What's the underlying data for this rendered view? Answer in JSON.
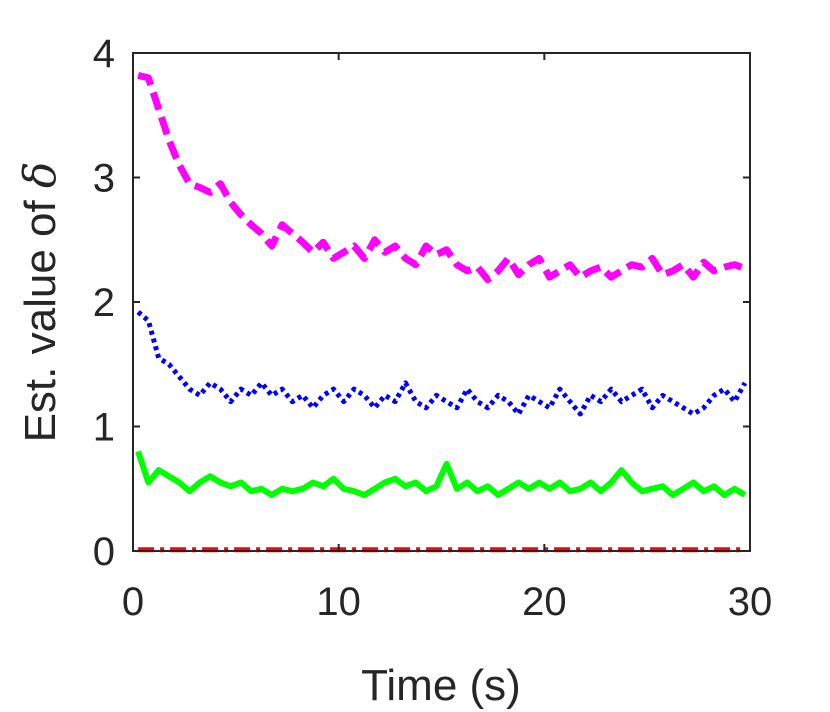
{
  "chart_data": {
    "type": "line",
    "xlabel": "Time (s)",
    "ylabel_prefix": "Est. value of ",
    "ylabel_symbol": "δ",
    "xlim": [
      0,
      30
    ],
    "ylim": [
      0,
      4
    ],
    "x_ticks": [
      0,
      10,
      20,
      30
    ],
    "y_ticks": [
      0,
      1,
      2,
      3,
      4
    ],
    "x_tick_labels": [
      "0",
      "10",
      "20",
      "30"
    ],
    "y_tick_labels": [
      "0",
      "1",
      "2",
      "3",
      "4"
    ],
    "grid": false,
    "x": [
      0.25,
      0.75,
      1.25,
      1.75,
      2.25,
      2.75,
      3.25,
      3.75,
      4.25,
      4.75,
      5.25,
      5.75,
      6.25,
      6.75,
      7.25,
      7.75,
      8.25,
      8.75,
      9.25,
      9.75,
      10.25,
      10.75,
      11.25,
      11.75,
      12.25,
      12.75,
      13.25,
      13.75,
      14.25,
      14.75,
      15.25,
      15.75,
      16.25,
      16.75,
      17.25,
      17.75,
      18.25,
      18.75,
      19.25,
      19.75,
      20.25,
      20.75,
      21.25,
      21.75,
      22.25,
      22.75,
      23.25,
      23.75,
      24.25,
      24.75,
      25.25,
      25.75,
      26.25,
      26.75,
      27.25,
      27.75,
      28.25,
      28.75,
      29.25,
      29.75
    ],
    "series": [
      {
        "name": "magenta-dashed",
        "color": "#ff00ff",
        "style": "dashed",
        "values": [
          3.82,
          3.8,
          3.55,
          3.3,
          3.1,
          2.95,
          2.92,
          2.88,
          2.95,
          2.8,
          2.7,
          2.62,
          2.55,
          2.45,
          2.62,
          2.55,
          2.48,
          2.4,
          2.48,
          2.35,
          2.4,
          2.45,
          2.35,
          2.5,
          2.4,
          2.45,
          2.35,
          2.3,
          2.45,
          2.38,
          2.42,
          2.3,
          2.25,
          2.28,
          2.18,
          2.25,
          2.35,
          2.22,
          2.3,
          2.35,
          2.2,
          2.25,
          2.3,
          2.2,
          2.25,
          2.28,
          2.2,
          2.25,
          2.3,
          2.28,
          2.35,
          2.22,
          2.25,
          2.3,
          2.2,
          2.32,
          2.25,
          2.28,
          2.3,
          2.27
        ]
      },
      {
        "name": "blue-dotted",
        "color": "#0000ff",
        "style": "dotted",
        "values": [
          1.92,
          1.85,
          1.55,
          1.5,
          1.4,
          1.3,
          1.25,
          1.35,
          1.3,
          1.2,
          1.3,
          1.25,
          1.35,
          1.25,
          1.3,
          1.2,
          1.25,
          1.15,
          1.25,
          1.3,
          1.2,
          1.3,
          1.25,
          1.15,
          1.25,
          1.2,
          1.35,
          1.2,
          1.15,
          1.25,
          1.2,
          1.15,
          1.3,
          1.2,
          1.15,
          1.25,
          1.2,
          1.1,
          1.25,
          1.2,
          1.15,
          1.3,
          1.2,
          1.1,
          1.25,
          1.2,
          1.3,
          1.2,
          1.25,
          1.3,
          1.15,
          1.25,
          1.2,
          1.15,
          1.1,
          1.15,
          1.25,
          1.3,
          1.2,
          1.35
        ]
      },
      {
        "name": "green-solid",
        "color": "#00ff00",
        "style": "solid",
        "values": [
          0.8,
          0.55,
          0.65,
          0.6,
          0.55,
          0.48,
          0.55,
          0.6,
          0.55,
          0.52,
          0.55,
          0.48,
          0.5,
          0.45,
          0.5,
          0.48,
          0.5,
          0.55,
          0.52,
          0.58,
          0.5,
          0.48,
          0.45,
          0.5,
          0.55,
          0.58,
          0.52,
          0.55,
          0.48,
          0.52,
          0.7,
          0.5,
          0.55,
          0.48,
          0.52,
          0.45,
          0.5,
          0.55,
          0.5,
          0.55,
          0.5,
          0.55,
          0.48,
          0.5,
          0.55,
          0.48,
          0.55,
          0.65,
          0.55,
          0.48,
          0.5,
          0.52,
          0.45,
          0.5,
          0.55,
          0.48,
          0.52,
          0.45,
          0.5,
          0.45
        ]
      },
      {
        "name": "red-dashdot",
        "color": "#ff0000",
        "style": "dashdot",
        "values": [
          0.01,
          0.01,
          0.01,
          0.01,
          0.01,
          0.01,
          0.01,
          0.01,
          0.01,
          0.01,
          0.01,
          0.01,
          0.01,
          0.01,
          0.01,
          0.01,
          0.01,
          0.01,
          0.01,
          0.01,
          0.01,
          0.01,
          0.01,
          0.01,
          0.01,
          0.01,
          0.01,
          0.01,
          0.01,
          0.01,
          0.01,
          0.01,
          0.01,
          0.01,
          0.01,
          0.01,
          0.01,
          0.01,
          0.01,
          0.01,
          0.01,
          0.01,
          0.01,
          0.01,
          0.01,
          0.01,
          0.01,
          0.01,
          0.01,
          0.01,
          0.01,
          0.01,
          0.01,
          0.01,
          0.01,
          0.01,
          0.01,
          0.01,
          0.01,
          0.01
        ]
      }
    ]
  }
}
